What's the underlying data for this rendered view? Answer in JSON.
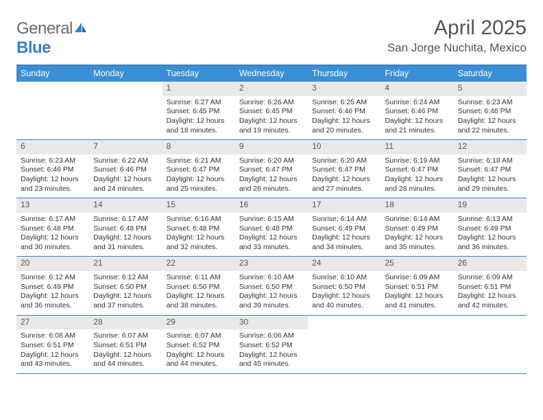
{
  "brand": {
    "word1": "General",
    "word2": "Blue"
  },
  "title": "April 2025",
  "location": "San Jorge Nuchita, Mexico",
  "colors": {
    "header_bar": "#3a8fd4",
    "rule": "#3a7fc4",
    "daynum_bg": "#e9e9e9",
    "text": "#333333",
    "title_text": "#555555",
    "logo_gray": "#6b6b6b",
    "logo_blue": "#3a7fc4",
    "background": "#ffffff"
  },
  "typography": {
    "title_fontsize_pt": 22,
    "location_fontsize_pt": 13,
    "dow_fontsize_pt": 9.5,
    "body_fontsize_pt": 8,
    "daynum_fontsize_pt": 9
  },
  "days_of_week": [
    "Sunday",
    "Monday",
    "Tuesday",
    "Wednesday",
    "Thursday",
    "Friday",
    "Saturday"
  ],
  "first_weekday_index": 2,
  "days": [
    {
      "n": 1,
      "sunrise": "6:27 AM",
      "sunset": "6:45 PM",
      "daylight": "12 hours and 18 minutes."
    },
    {
      "n": 2,
      "sunrise": "6:26 AM",
      "sunset": "6:45 PM",
      "daylight": "12 hours and 19 minutes."
    },
    {
      "n": 3,
      "sunrise": "6:25 AM",
      "sunset": "6:46 PM",
      "daylight": "12 hours and 20 minutes."
    },
    {
      "n": 4,
      "sunrise": "6:24 AM",
      "sunset": "6:46 PM",
      "daylight": "12 hours and 21 minutes."
    },
    {
      "n": 5,
      "sunrise": "6:23 AM",
      "sunset": "6:46 PM",
      "daylight": "12 hours and 22 minutes."
    },
    {
      "n": 6,
      "sunrise": "6:23 AM",
      "sunset": "6:46 PM",
      "daylight": "12 hours and 23 minutes."
    },
    {
      "n": 7,
      "sunrise": "6:22 AM",
      "sunset": "6:46 PM",
      "daylight": "12 hours and 24 minutes."
    },
    {
      "n": 8,
      "sunrise": "6:21 AM",
      "sunset": "6:47 PM",
      "daylight": "12 hours and 25 minutes."
    },
    {
      "n": 9,
      "sunrise": "6:20 AM",
      "sunset": "6:47 PM",
      "daylight": "12 hours and 26 minutes."
    },
    {
      "n": 10,
      "sunrise": "6:20 AM",
      "sunset": "6:47 PM",
      "daylight": "12 hours and 27 minutes."
    },
    {
      "n": 11,
      "sunrise": "6:19 AM",
      "sunset": "6:47 PM",
      "daylight": "12 hours and 28 minutes."
    },
    {
      "n": 12,
      "sunrise": "6:18 AM",
      "sunset": "6:47 PM",
      "daylight": "12 hours and 29 minutes."
    },
    {
      "n": 13,
      "sunrise": "6:17 AM",
      "sunset": "6:48 PM",
      "daylight": "12 hours and 30 minutes."
    },
    {
      "n": 14,
      "sunrise": "6:17 AM",
      "sunset": "6:48 PM",
      "daylight": "12 hours and 31 minutes."
    },
    {
      "n": 15,
      "sunrise": "6:16 AM",
      "sunset": "6:48 PM",
      "daylight": "12 hours and 32 minutes."
    },
    {
      "n": 16,
      "sunrise": "6:15 AM",
      "sunset": "6:48 PM",
      "daylight": "12 hours and 33 minutes."
    },
    {
      "n": 17,
      "sunrise": "6:14 AM",
      "sunset": "6:49 PM",
      "daylight": "12 hours and 34 minutes."
    },
    {
      "n": 18,
      "sunrise": "6:14 AM",
      "sunset": "6:49 PM",
      "daylight": "12 hours and 35 minutes."
    },
    {
      "n": 19,
      "sunrise": "6:13 AM",
      "sunset": "6:49 PM",
      "daylight": "12 hours and 36 minutes."
    },
    {
      "n": 20,
      "sunrise": "6:12 AM",
      "sunset": "6:49 PM",
      "daylight": "12 hours and 36 minutes."
    },
    {
      "n": 21,
      "sunrise": "6:12 AM",
      "sunset": "6:50 PM",
      "daylight": "12 hours and 37 minutes."
    },
    {
      "n": 22,
      "sunrise": "6:11 AM",
      "sunset": "6:50 PM",
      "daylight": "12 hours and 38 minutes."
    },
    {
      "n": 23,
      "sunrise": "6:10 AM",
      "sunset": "6:50 PM",
      "daylight": "12 hours and 39 minutes."
    },
    {
      "n": 24,
      "sunrise": "6:10 AM",
      "sunset": "6:50 PM",
      "daylight": "12 hours and 40 minutes."
    },
    {
      "n": 25,
      "sunrise": "6:09 AM",
      "sunset": "6:51 PM",
      "daylight": "12 hours and 41 minutes."
    },
    {
      "n": 26,
      "sunrise": "6:09 AM",
      "sunset": "6:51 PM",
      "daylight": "12 hours and 42 minutes."
    },
    {
      "n": 27,
      "sunrise": "6:08 AM",
      "sunset": "6:51 PM",
      "daylight": "12 hours and 43 minutes."
    },
    {
      "n": 28,
      "sunrise": "6:07 AM",
      "sunset": "6:51 PM",
      "daylight": "12 hours and 44 minutes."
    },
    {
      "n": 29,
      "sunrise": "6:07 AM",
      "sunset": "6:52 PM",
      "daylight": "12 hours and 44 minutes."
    },
    {
      "n": 30,
      "sunrise": "6:06 AM",
      "sunset": "6:52 PM",
      "daylight": "12 hours and 45 minutes."
    }
  ],
  "labels": {
    "sunrise": "Sunrise:",
    "sunset": "Sunset:",
    "daylight": "Daylight:"
  }
}
